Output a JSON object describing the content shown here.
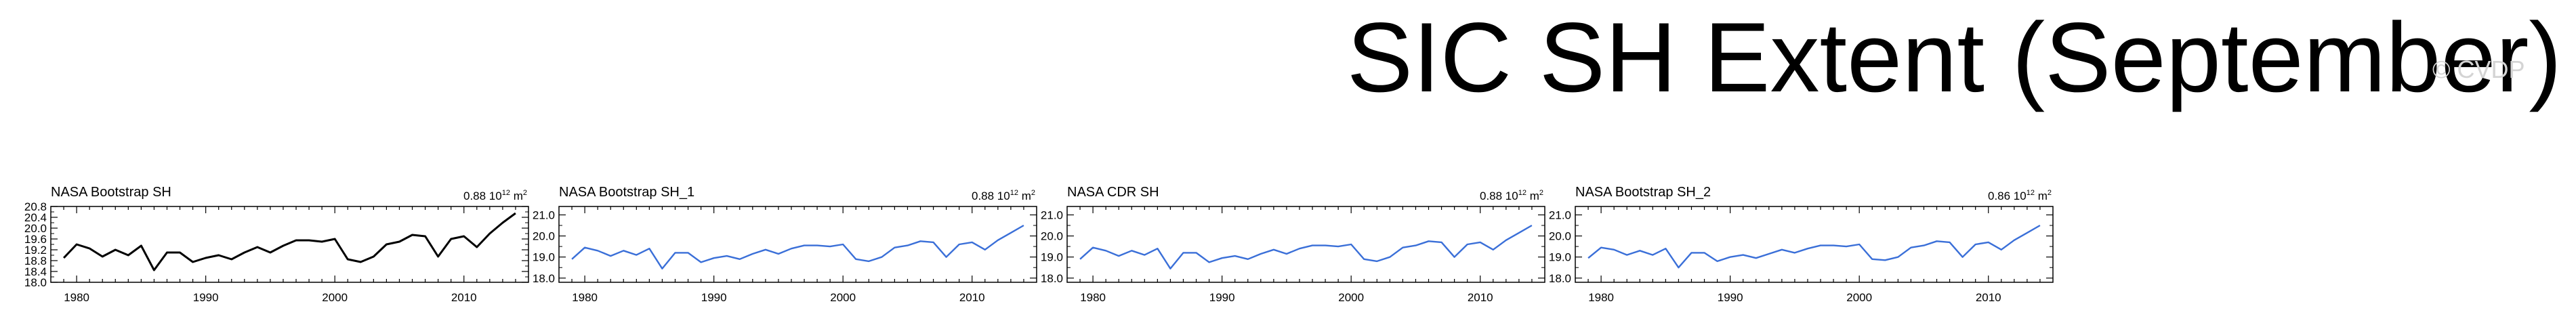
{
  "page": {
    "title": "SIC SH Extent (September)",
    "watermark": "© CVDP"
  },
  "chart_data": [
    {
      "type": "line",
      "title": "NASA Bootstrap SH",
      "stat_value": "0.88",
      "stat_exp": "12",
      "stat_unit": "m",
      "stat_unit_exp": "2",
      "xlabel": "",
      "ylabel": "",
      "xlim": [
        1978,
        2015
      ],
      "ylim": [
        18.0,
        20.8
      ],
      "yticks": [
        "18.0",
        "18.4",
        "18.8",
        "19.2",
        "19.6",
        "20.0",
        "20.4",
        "20.8"
      ],
      "xticks": [
        "1980",
        "1990",
        "2000",
        "2010"
      ],
      "line_color": "#000000",
      "x": [
        1979,
        1980,
        1981,
        1982,
        1983,
        1984,
        1985,
        1986,
        1987,
        1988,
        1989,
        1990,
        1991,
        1992,
        1993,
        1994,
        1995,
        1996,
        1997,
        1998,
        1999,
        2000,
        2001,
        2002,
        2003,
        2004,
        2005,
        2006,
        2007,
        2008,
        2009,
        2010,
        2011,
        2012,
        2013,
        2014
      ],
      "values": [
        18.9,
        19.4,
        19.25,
        18.95,
        19.2,
        19.0,
        19.35,
        18.45,
        19.1,
        19.1,
        18.75,
        18.9,
        19.0,
        18.85,
        19.1,
        19.3,
        19.1,
        19.35,
        19.55,
        19.55,
        19.5,
        19.6,
        18.85,
        18.75,
        18.95,
        19.4,
        19.5,
        19.75,
        19.7,
        18.95,
        19.6,
        19.7,
        19.3,
        19.8,
        20.2,
        20.55
      ]
    },
    {
      "type": "line",
      "title": "NASA Bootstrap SH_1",
      "stat_value": "0.88",
      "stat_exp": "12",
      "stat_unit": "m",
      "stat_unit_exp": "2",
      "xlabel": "",
      "ylabel": "",
      "xlim": [
        1978,
        2015
      ],
      "ylim": [
        17.8,
        21.4
      ],
      "yticks": [
        "18.0",
        "19.0",
        "20.0",
        "21.0"
      ],
      "xticks": [
        "1980",
        "1990",
        "2000",
        "2010"
      ],
      "line_color": "#3a6fd8",
      "x": [
        1979,
        1980,
        1981,
        1982,
        1983,
        1984,
        1985,
        1986,
        1987,
        1988,
        1989,
        1990,
        1991,
        1992,
        1993,
        1994,
        1995,
        1996,
        1997,
        1998,
        1999,
        2000,
        2001,
        2002,
        2003,
        2004,
        2005,
        2006,
        2007,
        2008,
        2009,
        2010,
        2011,
        2012,
        2013,
        2014
      ],
      "values": [
        18.9,
        19.45,
        19.3,
        19.05,
        19.3,
        19.1,
        19.4,
        18.45,
        19.2,
        19.2,
        18.75,
        18.95,
        19.05,
        18.9,
        19.15,
        19.35,
        19.15,
        19.4,
        19.55,
        19.55,
        19.5,
        19.6,
        18.9,
        18.8,
        19.0,
        19.45,
        19.55,
        19.75,
        19.7,
        19.0,
        19.6,
        19.7,
        19.35,
        19.8,
        20.15,
        20.5
      ]
    },
    {
      "type": "line",
      "title": "NASA CDR SH",
      "stat_value": "0.88",
      "stat_exp": "12",
      "stat_unit": "m",
      "stat_unit_exp": "2",
      "xlabel": "",
      "ylabel": "",
      "xlim": [
        1978,
        2015
      ],
      "ylim": [
        17.8,
        21.4
      ],
      "yticks": [
        "18.0",
        "19.0",
        "20.0",
        "21.0"
      ],
      "xticks": [
        "1980",
        "1990",
        "2000",
        "2010"
      ],
      "line_color": "#3a6fd8",
      "x": [
        1979,
        1980,
        1981,
        1982,
        1983,
        1984,
        1985,
        1986,
        1987,
        1988,
        1989,
        1990,
        1991,
        1992,
        1993,
        1994,
        1995,
        1996,
        1997,
        1998,
        1999,
        2000,
        2001,
        2002,
        2003,
        2004,
        2005,
        2006,
        2007,
        2008,
        2009,
        2010,
        2011,
        2012,
        2013,
        2014
      ],
      "values": [
        18.9,
        19.45,
        19.3,
        19.05,
        19.3,
        19.1,
        19.4,
        18.45,
        19.2,
        19.2,
        18.75,
        18.95,
        19.05,
        18.9,
        19.15,
        19.35,
        19.15,
        19.4,
        19.55,
        19.55,
        19.5,
        19.6,
        18.9,
        18.8,
        19.0,
        19.45,
        19.55,
        19.75,
        19.7,
        19.0,
        19.6,
        19.7,
        19.35,
        19.8,
        20.15,
        20.5
      ]
    },
    {
      "type": "line",
      "title": "NASA Bootstrap SH_2",
      "stat_value": "0.86",
      "stat_exp": "12",
      "stat_unit": "m",
      "stat_unit_exp": "2",
      "xlabel": "",
      "ylabel": "",
      "xlim": [
        1978,
        2015
      ],
      "ylim": [
        17.8,
        21.4
      ],
      "yticks": [
        "18.0",
        "19.0",
        "20.0",
        "21.0"
      ],
      "xticks": [
        "1980",
        "1990",
        "2000",
        "2010"
      ],
      "line_color": "#3a6fd8",
      "x": [
        1979,
        1980,
        1981,
        1982,
        1983,
        1984,
        1985,
        1986,
        1987,
        1988,
        1989,
        1990,
        1991,
        1992,
        1993,
        1994,
        1995,
        1996,
        1997,
        1998,
        1999,
        2000,
        2001,
        2002,
        2003,
        2004,
        2005,
        2006,
        2007,
        2008,
        2009,
        2010,
        2011,
        2012,
        2013,
        2014
      ],
      "values": [
        18.95,
        19.45,
        19.35,
        19.1,
        19.3,
        19.1,
        19.4,
        18.5,
        19.2,
        19.2,
        18.8,
        19.0,
        19.1,
        18.95,
        19.15,
        19.35,
        19.2,
        19.4,
        19.55,
        19.55,
        19.5,
        19.6,
        18.9,
        18.85,
        19.0,
        19.45,
        19.55,
        19.75,
        19.7,
        19.0,
        19.6,
        19.7,
        19.35,
        19.8,
        20.15,
        20.5
      ]
    }
  ]
}
